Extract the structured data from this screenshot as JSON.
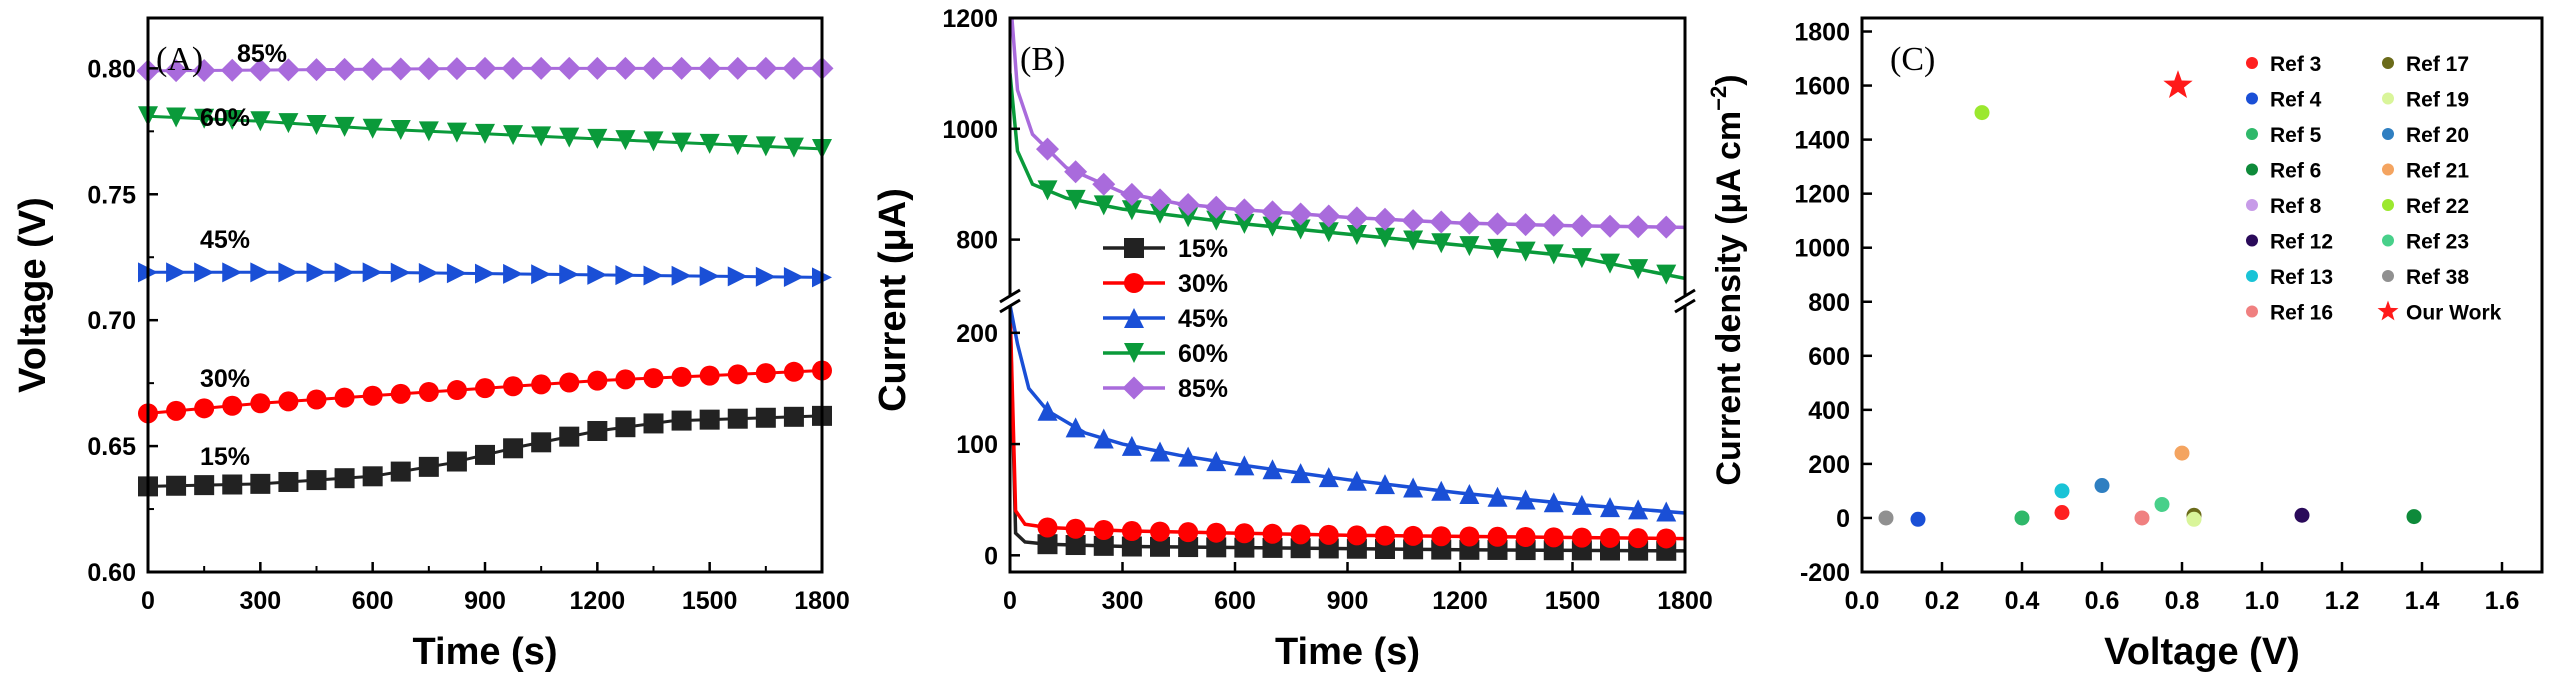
{
  "chart_data": [
    {
      "panel_label": "(A)",
      "type": "line",
      "xlabel": "Time (s)",
      "ylabel": "Voltage (V)",
      "xlim": [
        0,
        1800
      ],
      "ylim": [
        0.6,
        0.82
      ],
      "xticks": [
        "0",
        "300",
        "600",
        "900",
        "1200",
        "1500",
        "1800"
      ],
      "yticks": [
        "0.60",
        "0.65",
        "0.70",
        "0.75",
        "0.80"
      ],
      "series": [
        {
          "name": "15%",
          "label": "15%",
          "color": "#222222",
          "marker": "square",
          "x": [
            0,
            1800
          ],
          "y": [
            0.634,
            0.662
          ],
          "points": [
            [
              0,
              0.634
            ],
            [
              300,
              0.635
            ],
            [
              600,
              0.638
            ],
            [
              800,
              0.643
            ],
            [
              1000,
              0.65
            ],
            [
              1200,
              0.656
            ],
            [
              1400,
              0.66
            ],
            [
              1600,
              0.661
            ],
            [
              1800,
              0.662
            ]
          ]
        },
        {
          "name": "30%",
          "label": "30%",
          "color": "#ff0000",
          "marker": "circle",
          "points": [
            [
              0,
              0.663
            ],
            [
              300,
              0.667
            ],
            [
              600,
              0.67
            ],
            [
              900,
              0.673
            ],
            [
              1200,
              0.676
            ],
            [
              1500,
              0.678
            ],
            [
              1800,
              0.68
            ]
          ]
        },
        {
          "name": "45%",
          "label": "45%",
          "color": "#1a4fd6",
          "marker": "triangle-right",
          "points": [
            [
              0,
              0.719
            ],
            [
              600,
              0.719
            ],
            [
              1200,
              0.718
            ],
            [
              1800,
              0.717
            ]
          ]
        },
        {
          "name": "60%",
          "label": "60%",
          "color": "#0a9a3a",
          "marker": "triangle-down",
          "points": [
            [
              0,
              0.781
            ],
            [
              300,
              0.779
            ],
            [
              600,
              0.776
            ],
            [
              900,
              0.774
            ],
            [
              1200,
              0.772
            ],
            [
              1500,
              0.77
            ],
            [
              1800,
              0.768
            ]
          ]
        },
        {
          "name": "85%",
          "label": "85%",
          "color": "#a96bdc",
          "marker": "diamond",
          "points": [
            [
              0,
              0.799
            ],
            [
              900,
              0.8
            ],
            [
              1800,
              0.8
            ]
          ]
        }
      ]
    },
    {
      "panel_label": "(B)",
      "type": "line",
      "xlabel": "Time (s)",
      "ylabel": "Current (μA)",
      "xlim": [
        0,
        1800
      ],
      "ylim_lower": [
        -15,
        225
      ],
      "ylim_upper": [
        700,
        1200
      ],
      "axis_break": true,
      "xticks": [
        "0",
        "300",
        "600",
        "900",
        "1200",
        "1500",
        "1800"
      ],
      "yticks_lower": [
        "0",
        "100",
        "200"
      ],
      "yticks_upper": [
        "800",
        "1000",
        "1200"
      ],
      "legend_position": "middle-left",
      "series": [
        {
          "name": "15%",
          "color": "#222222",
          "marker": "square",
          "points": [
            [
              0,
              220
            ],
            [
              15,
              20
            ],
            [
              40,
              12
            ],
            [
              100,
              10
            ],
            [
              300,
              8
            ],
            [
              600,
              7
            ],
            [
              1200,
              5
            ],
            [
              1800,
              4
            ]
          ]
        },
        {
          "name": "30%",
          "color": "#ff0000",
          "marker": "circle",
          "points": [
            [
              0,
              225
            ],
            [
              15,
              40
            ],
            [
              40,
              28
            ],
            [
              100,
              25
            ],
            [
              300,
              22
            ],
            [
              600,
              20
            ],
            [
              900,
              18
            ],
            [
              1200,
              17
            ],
            [
              1500,
              16
            ],
            [
              1800,
              15
            ]
          ]
        },
        {
          "name": "45%",
          "color": "#1a4fd6",
          "marker": "triangle-up",
          "points": [
            [
              0,
              225
            ],
            [
              20,
              190
            ],
            [
              50,
              150
            ],
            [
              100,
              130
            ],
            [
              200,
              110
            ],
            [
              300,
              100
            ],
            [
              450,
              90
            ],
            [
              600,
              82
            ],
            [
              900,
              68
            ],
            [
              1200,
              56
            ],
            [
              1500,
              46
            ],
            [
              1800,
              38
            ]
          ]
        },
        {
          "name": "60%",
          "color": "#0a9a3a",
          "marker": "triangle-down",
          "points": [
            [
              0,
              1100
            ],
            [
              20,
              960
            ],
            [
              60,
              900
            ],
            [
              150,
              875
            ],
            [
              300,
              855
            ],
            [
              600,
              830
            ],
            [
              900,
              810
            ],
            [
              1200,
              790
            ],
            [
              1500,
              770
            ],
            [
              1800,
              730
            ]
          ]
        },
        {
          "name": "85%",
          "color": "#a96bdc",
          "marker": "diamond",
          "points": [
            [
              5,
              1200
            ],
            [
              20,
              1070
            ],
            [
              60,
              990
            ],
            [
              150,
              930
            ],
            [
              300,
              885
            ],
            [
              450,
              865
            ],
            [
              600,
              855
            ],
            [
              900,
              840
            ],
            [
              1200,
              830
            ],
            [
              1500,
              825
            ],
            [
              1800,
              822
            ]
          ]
        }
      ]
    },
    {
      "panel_label": "(C)",
      "type": "scatter",
      "xlabel": "Voltage (V)",
      "ylabel": "Current density (μA cm⁻²)",
      "ylabel_main": "Current density (μA cm",
      "ylabel_sup": "−2",
      "ylabel_tail": ")",
      "xlim": [
        0.0,
        1.7
      ],
      "ylim": [
        -200,
        1850
      ],
      "xticks": [
        "0.0",
        "0.2",
        "0.4",
        "0.6",
        "0.8",
        "1.0",
        "1.2",
        "1.4",
        "1.6"
      ],
      "yticks": [
        "-200",
        "0",
        "200",
        "400",
        "600",
        "800",
        "1000",
        "1200",
        "1400",
        "1600",
        "1800"
      ],
      "legend_position": "top-right",
      "points": [
        {
          "name": "Ref 3",
          "color": "#ff2020",
          "x": 0.5,
          "y": 20
        },
        {
          "name": "Ref 4",
          "color": "#1a4fd6",
          "x": 0.14,
          "y": -5
        },
        {
          "name": "Ref 5",
          "color": "#2fb86a",
          "x": 0.4,
          "y": 0
        },
        {
          "name": "Ref 6",
          "color": "#0e8a3a",
          "x": 1.38,
          "y": 5
        },
        {
          "name": "Ref 8",
          "color": "#c79be8",
          "x": 0.83,
          "y": 0
        },
        {
          "name": "Ref 12",
          "color": "#2a0a5a",
          "x": 1.1,
          "y": 10
        },
        {
          "name": "Ref 13",
          "color": "#19c3d6",
          "x": 0.5,
          "y": 100
        },
        {
          "name": "Ref 16",
          "color": "#f08080",
          "x": 0.7,
          "y": 0
        },
        {
          "name": "Ref 17",
          "color": "#6b6b1a",
          "x": 0.83,
          "y": 10
        },
        {
          "name": "Ref 19",
          "color": "#d9f59a",
          "x": 0.83,
          "y": -5
        },
        {
          "name": "Ref 20",
          "color": "#2f7fc1",
          "x": 0.6,
          "y": 120
        },
        {
          "name": "Ref 21",
          "color": "#f4a460",
          "x": 0.8,
          "y": 240
        },
        {
          "name": "Ref 22",
          "color": "#9be82e",
          "x": 0.3,
          "y": 1500
        },
        {
          "name": "Ref 23",
          "color": "#48d08a",
          "x": 0.75,
          "y": 50
        },
        {
          "name": "Ref 38",
          "color": "#909090",
          "x": 0.06,
          "y": 0
        },
        {
          "name": "Our Work",
          "color": "#ff1a1a",
          "marker": "star",
          "x": 0.79,
          "y": 1600
        }
      ]
    }
  ]
}
